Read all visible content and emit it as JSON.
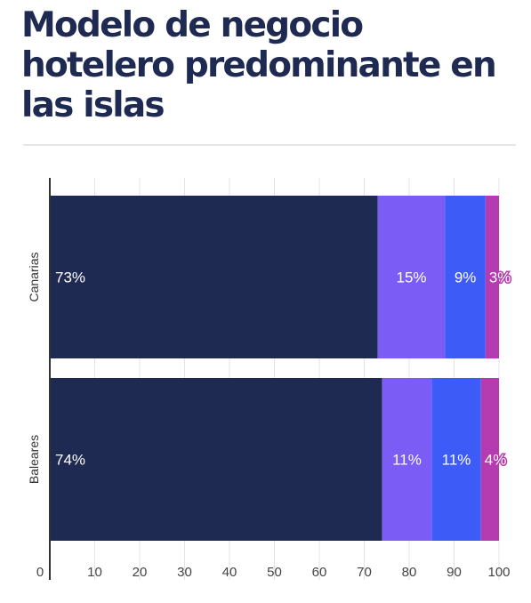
{
  "title": "Modelo de negocio hotelero predominante en las islas",
  "colors": {
    "title": "#1f2a52",
    "grid": "#e3e3e3",
    "axis": "#333333",
    "series": [
      "#1f2a52",
      "#7b5cf5",
      "#3d5cf7",
      "#b53cb0"
    ]
  },
  "chart_data": {
    "type": "bar",
    "orientation": "horizontal",
    "stacked": true,
    "categories": [
      "Canarias",
      "Baleares"
    ],
    "series": [
      {
        "values": [
          73,
          74
        ],
        "labels": [
          "73%",
          "74%"
        ]
      },
      {
        "values": [
          15,
          11
        ],
        "labels": [
          "15%",
          "11%"
        ]
      },
      {
        "values": [
          9,
          11
        ],
        "labels": [
          "9%",
          "11%"
        ]
      },
      {
        "values": [
          3,
          4
        ],
        "labels": [
          "3%",
          "4%"
        ]
      }
    ],
    "xlim": [
      0,
      100
    ],
    "xticks": [
      0,
      10,
      20,
      30,
      40,
      50,
      60,
      70,
      80,
      90,
      100
    ],
    "grid": true,
    "legend": "none"
  }
}
